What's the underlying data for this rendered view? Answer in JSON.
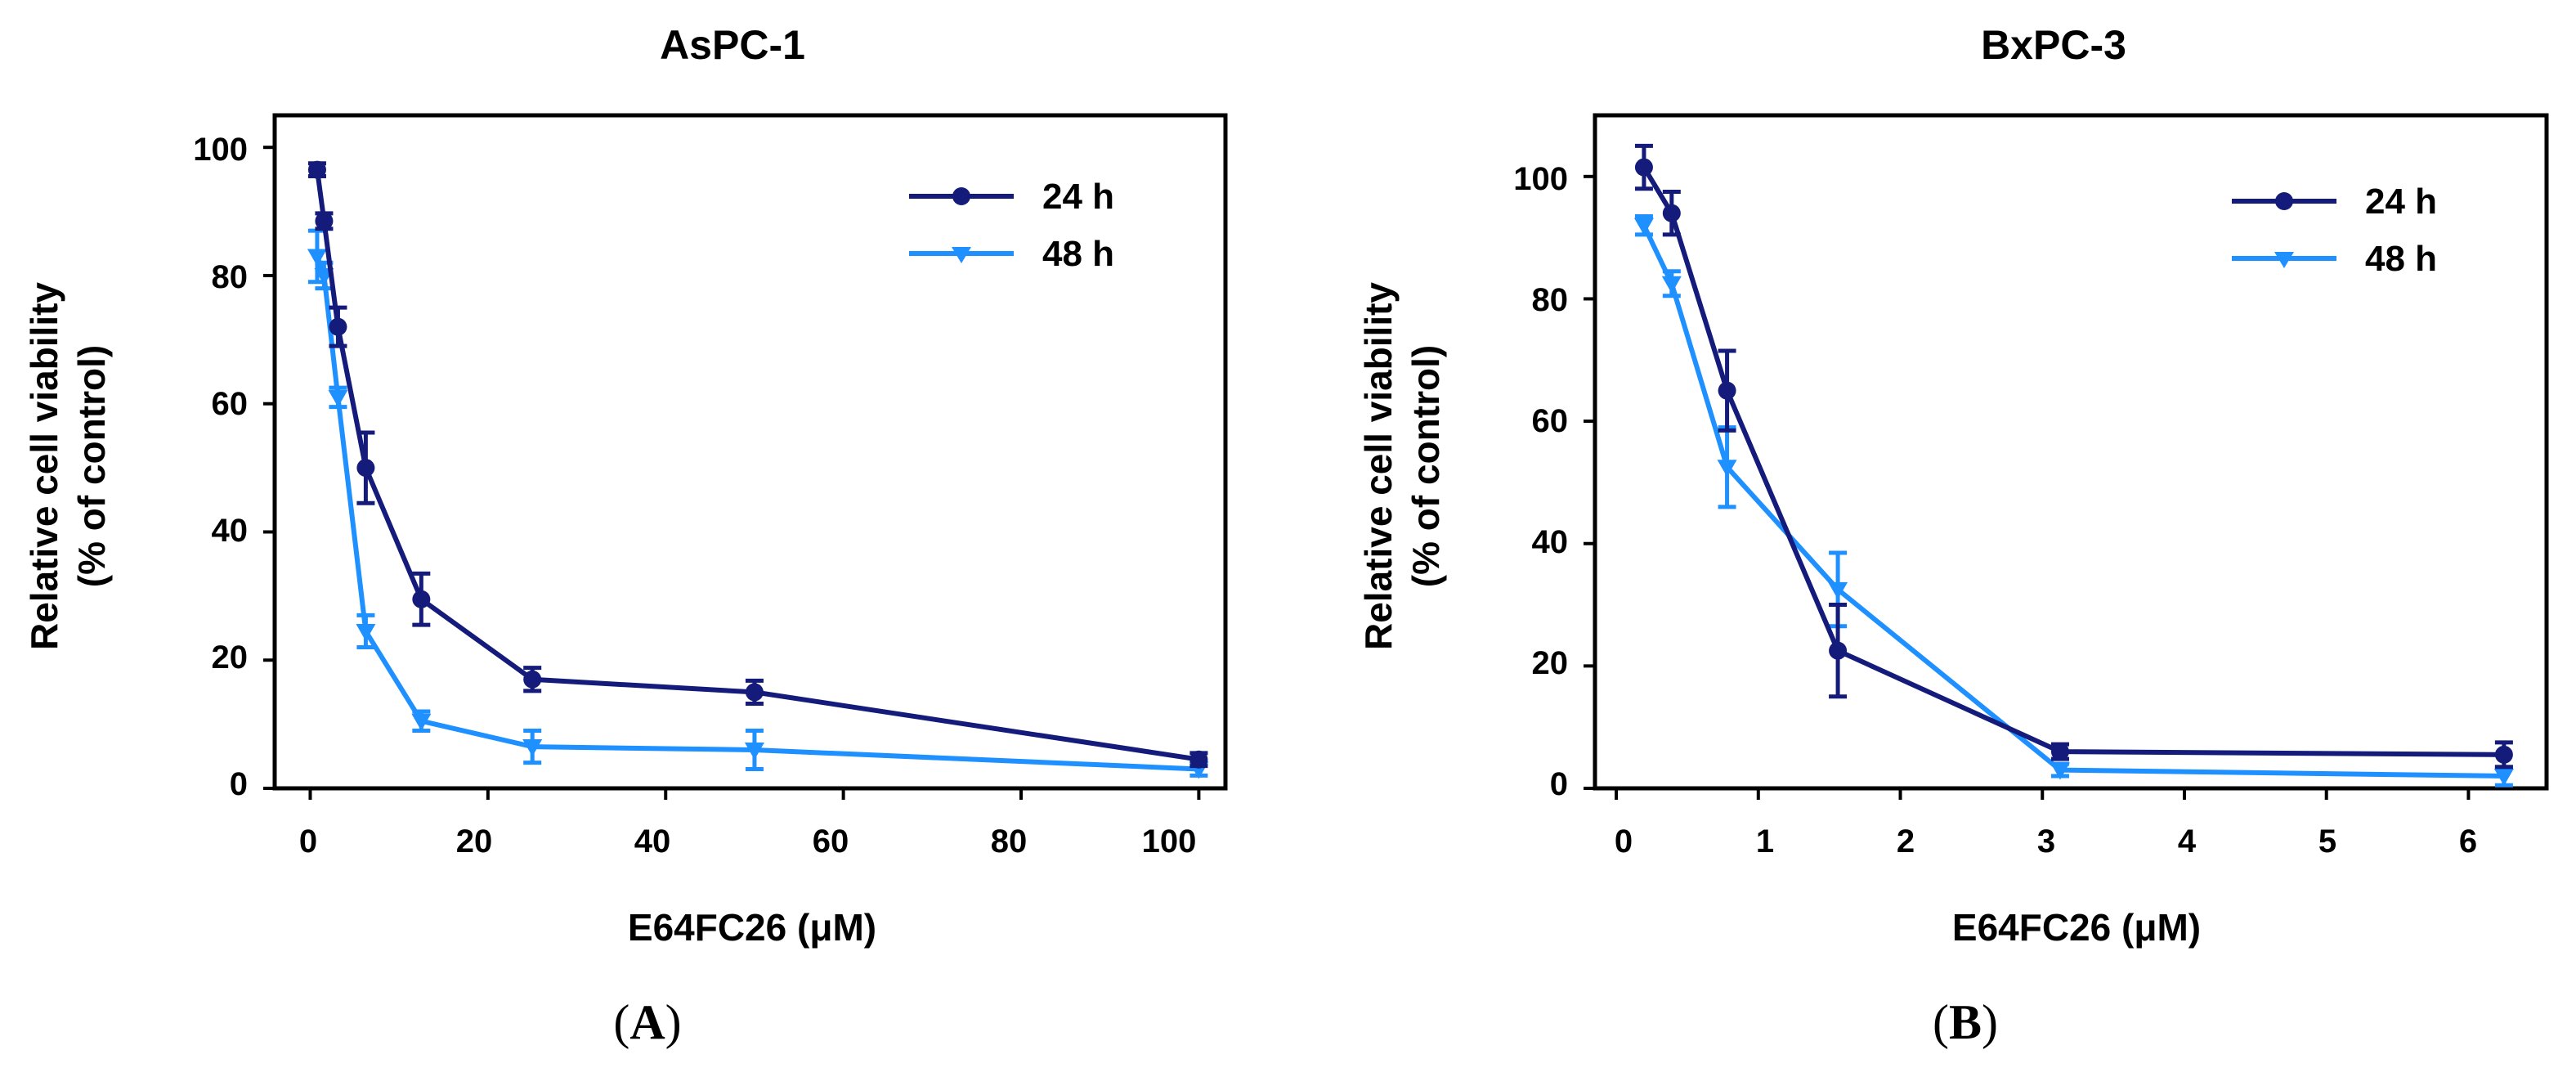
{
  "colors": {
    "series_24h": "#141b7a",
    "series_48h": "#1e90ff",
    "axis": "#000000"
  },
  "chart_data": [
    {
      "type": "line",
      "panel_label": "A",
      "title": "AsPC-1",
      "xlabel": "E64FC26 (μM)",
      "ylabel_line1": "Relative cell viability",
      "ylabel_line2": "(% of control)",
      "xlim": [
        -4,
        103
      ],
      "ylim": [
        0,
        105
      ],
      "xticks": [
        "0",
        "20",
        "40",
        "60",
        "80",
        "100"
      ],
      "yticks": [
        "0",
        "20",
        "40",
        "60",
        "80",
        "100"
      ],
      "legend_position": "top-right",
      "series": [
        {
          "name": "24 h",
          "marker": "circle",
          "x": [
            0.78,
            1.56,
            3.125,
            6.25,
            12.5,
            25,
            50,
            100
          ],
          "y": [
            96.5,
            88.5,
            72,
            50,
            29.5,
            17,
            15,
            4.5
          ],
          "err": [
            1,
            1.2,
            3,
            5.5,
            4,
            1.8,
            1.8,
            1
          ]
        },
        {
          "name": "48 h",
          "marker": "triangle-down",
          "x": [
            0.78,
            1.56,
            3.125,
            6.25,
            12.5,
            25,
            50,
            100
          ],
          "y": [
            83,
            80,
            61,
            24.5,
            10.5,
            6.5,
            6,
            3
          ],
          "err": [
            4,
            2,
            1.5,
            2.5,
            1.5,
            2.5,
            3,
            1
          ]
        }
      ]
    },
    {
      "type": "line",
      "panel_label": "B",
      "title": "BxPC-3",
      "xlabel": "E64FC26 (μM)",
      "ylabel_line1": "Relative cell viability",
      "ylabel_line2": "(% of control)",
      "xlim": [
        -0.15,
        6.55
      ],
      "ylim": [
        0,
        110
      ],
      "xticks": [
        "0",
        "1",
        "2",
        "3",
        "4",
        "5",
        "6"
      ],
      "yticks": [
        "0",
        "20",
        "40",
        "60",
        "80",
        "100"
      ],
      "legend_position": "top-right",
      "series": [
        {
          "name": "24 h",
          "marker": "circle",
          "x": [
            0.195,
            0.39,
            0.78,
            1.56,
            3.125,
            6.25
          ],
          "y": [
            101.5,
            94,
            65,
            22.5,
            6,
            5.5
          ],
          "err": [
            3.5,
            3.5,
            6.5,
            7.5,
            1.2,
            2
          ]
        },
        {
          "name": "48 h",
          "marker": "triangle-down",
          "x": [
            0.195,
            0.39,
            0.78,
            1.56,
            3.125,
            6.25
          ],
          "y": [
            92,
            82.5,
            52.5,
            32.5,
            3,
            2
          ],
          "err": [
            1.5,
            2,
            6.5,
            6,
            1,
            1.5
          ]
        }
      ]
    }
  ]
}
